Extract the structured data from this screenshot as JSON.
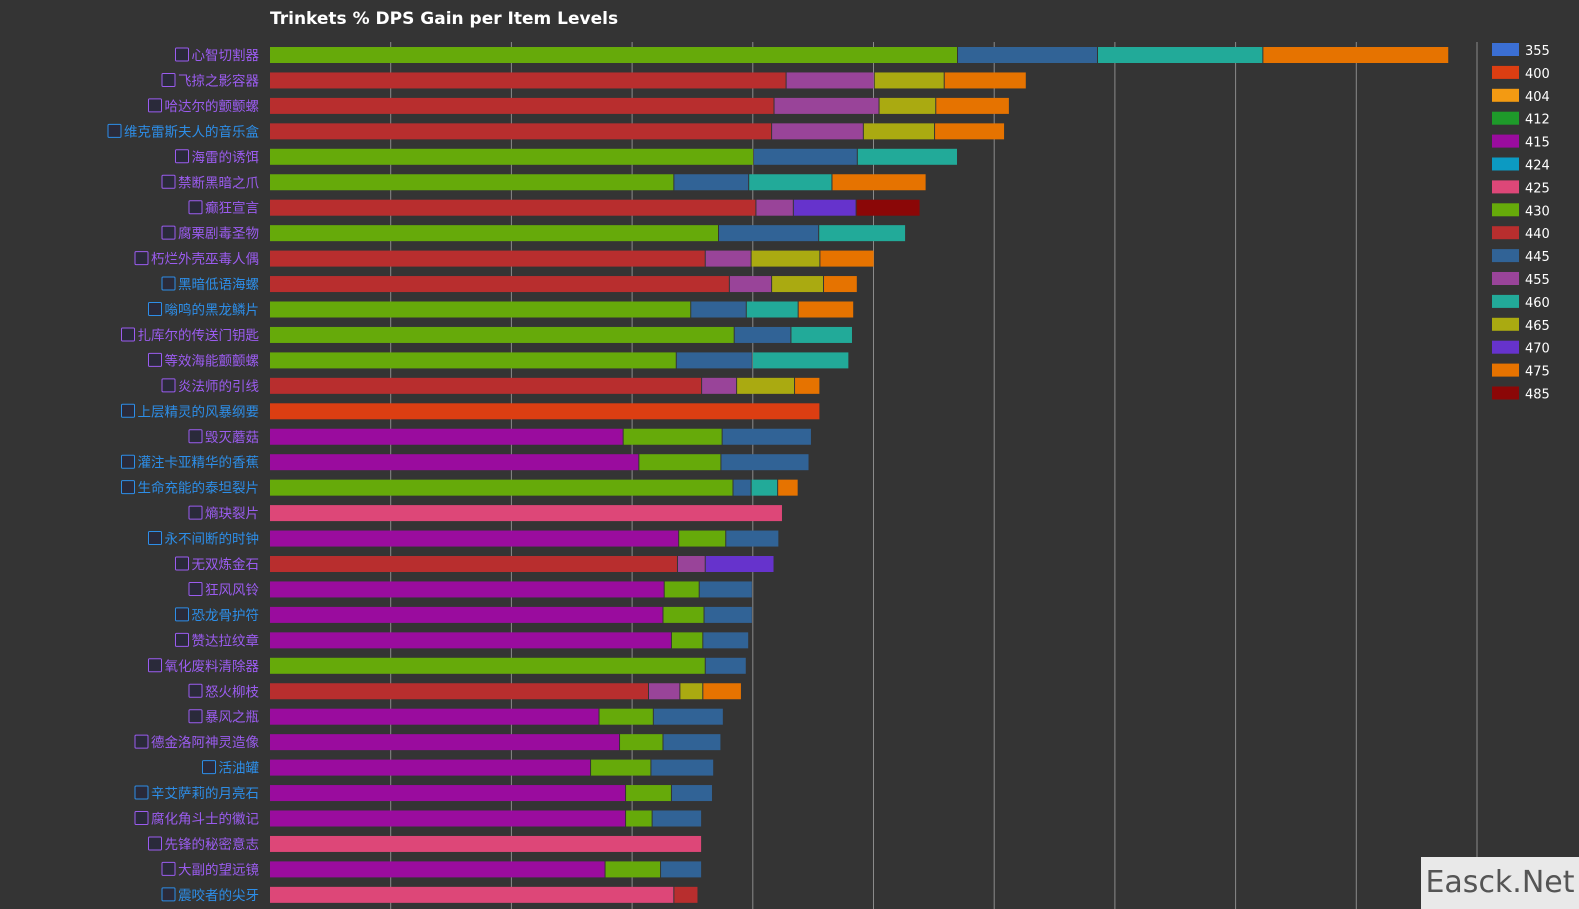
{
  "colors": {
    "background": "#343434",
    "grid": "#8a8a8a",
    "label_purple": "#9b5cf0",
    "label_blue": "#2d8ee8"
  },
  "watermark": "Easck.Net",
  "chart_data": {
    "type": "bar",
    "orientation": "horizontal",
    "stacked": true,
    "title": "Trinkets % DPS Gain per Item Levels",
    "grid": true,
    "legend_position": "right",
    "xlim": [
      0,
      100
    ],
    "legend": [
      {
        "label": "355",
        "color": "#3b6fd4"
      },
      {
        "label": "400",
        "color": "#dc3e12"
      },
      {
        "label": "404",
        "color": "#f39a12"
      },
      {
        "label": "412",
        "color": "#1e9a2a"
      },
      {
        "label": "415",
        "color": "#9a0c9e"
      },
      {
        "label": "424",
        "color": "#0c9ac2"
      },
      {
        "label": "425",
        "color": "#dd4778"
      },
      {
        "label": "430",
        "color": "#66aa0a"
      },
      {
        "label": "440",
        "color": "#b82e2e"
      },
      {
        "label": "445",
        "color": "#316396"
      },
      {
        "label": "455",
        "color": "#994499"
      },
      {
        "label": "460",
        "color": "#22aa99"
      },
      {
        "label": "465",
        "color": "#aaaa11"
      },
      {
        "label": "470",
        "color": "#6633cc"
      },
      {
        "label": "475",
        "color": "#e67300"
      },
      {
        "label": "485",
        "color": "#8b0707"
      }
    ],
    "categories": [
      "心智切割器",
      "飞掠之影容器",
      "哈达尔的颤颤螺",
      "维克雷斯夫人的音乐盒",
      "海雷的诱饵",
      "禁断黑暗之爪",
      "癫狂宣言",
      "腐栗剧毒圣物",
      "朽烂外壳巫毒人偶",
      "黑暗低语海螺",
      "嗡鸣的黑龙鳞片",
      "扎库尔的传送门钥匙",
      "等效海能颤颤螺",
      "炎法师的引线",
      "上层精灵的风暴纲要",
      "毁灭蘑菇",
      "灌注卡亚精华的香蕉",
      "生命充能的泰坦裂片",
      "熵玦裂片",
      "永不间断的时钟",
      "无双炼金石",
      "狂风风铃",
      "恐龙骨护符",
      "赞达拉纹章",
      "氧化废料清除器",
      "怒火柳枝",
      "暴风之瓶",
      "德金洛阿神灵造像",
      "活油罐",
      "辛艾萨莉的月亮石",
      "腐化角斗士的徽记",
      "先锋的秘密意志",
      "大副的望远镜",
      "震咬者的尖牙"
    ],
    "label_colors": [
      "purple",
      "purple",
      "purple",
      "blue",
      "purple",
      "purple",
      "purple",
      "purple",
      "purple",
      "blue",
      "blue",
      "purple",
      "purple",
      "purple",
      "blue",
      "purple",
      "blue",
      "blue",
      "purple",
      "blue",
      "purple",
      "purple",
      "blue",
      "purple",
      "purple",
      "purple",
      "purple",
      "purple",
      "blue",
      "blue",
      "purple",
      "purple",
      "purple",
      "blue"
    ],
    "bars": [
      [
        [
          "430",
          57
        ],
        [
          "445",
          11.6
        ],
        [
          "460",
          13.7
        ],
        [
          "475",
          15.4
        ]
      ],
      [
        [
          "440",
          42.8
        ],
        [
          "455",
          7.3
        ],
        [
          "465",
          5.8
        ],
        [
          "475",
          6.8
        ]
      ],
      [
        [
          "440",
          41.8
        ],
        [
          "455",
          8.7
        ],
        [
          "465",
          4.7
        ],
        [
          "475",
          6.1
        ]
      ],
      [
        [
          "440",
          41.6
        ],
        [
          "455",
          7.6
        ],
        [
          "465",
          5.9
        ],
        [
          "475",
          5.8
        ]
      ],
      [
        [
          "430",
          40.1
        ],
        [
          "445",
          8.6
        ],
        [
          "460",
          8.3
        ]
      ],
      [
        [
          "430",
          33.5
        ],
        [
          "445",
          6.2
        ],
        [
          "460",
          6.9
        ],
        [
          "475",
          7.8
        ]
      ],
      [
        [
          "440",
          40.3
        ],
        [
          "455",
          3.1
        ],
        [
          "470",
          5.2
        ],
        [
          "485",
          5.3
        ]
      ],
      [
        [
          "430",
          37.2
        ],
        [
          "445",
          8.3
        ],
        [
          "460",
          7.2
        ]
      ],
      [
        [
          "440",
          36.1
        ],
        [
          "455",
          3.8
        ],
        [
          "465",
          5.7
        ],
        [
          "475",
          4.5
        ]
      ],
      [
        [
          "440",
          38.1
        ],
        [
          "455",
          3.5
        ],
        [
          "465",
          4.3
        ],
        [
          "475",
          2.8
        ]
      ],
      [
        [
          "430",
          34.9
        ],
        [
          "445",
          4.6
        ],
        [
          "460",
          4.3
        ],
        [
          "475",
          4.6
        ]
      ],
      [
        [
          "430",
          38.5
        ],
        [
          "445",
          4.7
        ],
        [
          "460",
          5.1
        ]
      ],
      [
        [
          "430",
          33.7
        ],
        [
          "445",
          6.3
        ],
        [
          "460",
          8
        ]
      ],
      [
        [
          "440",
          35.8
        ],
        [
          "455",
          2.9
        ],
        [
          "465",
          4.8
        ],
        [
          "475",
          2.1
        ]
      ],
      [
        [
          "400",
          45.6
        ]
      ],
      [
        [
          "415",
          29.3
        ],
        [
          "430",
          8.2
        ],
        [
          "445",
          7.4
        ]
      ],
      [
        [
          "415",
          30.6
        ],
        [
          "430",
          6.8
        ],
        [
          "445",
          7.3
        ]
      ],
      [
        [
          "430",
          38.4
        ],
        [
          "445",
          1.5
        ],
        [
          "460",
          2.2
        ],
        [
          "475",
          1.7
        ]
      ],
      [
        [
          "425",
          42.5
        ]
      ],
      [
        [
          "415",
          33.9
        ],
        [
          "430",
          3.9
        ],
        [
          "445",
          4.4
        ]
      ],
      [
        [
          "440",
          33.8
        ],
        [
          "455",
          2.3
        ],
        [
          "470",
          5.7
        ]
      ],
      [
        [
          "415",
          32.7
        ],
        [
          "430",
          2.9
        ],
        [
          "445",
          4.4
        ]
      ],
      [
        [
          "415",
          32.6
        ],
        [
          "430",
          3.4
        ],
        [
          "445",
          4
        ]
      ],
      [
        [
          "415",
          33.3
        ],
        [
          "430",
          2.6
        ],
        [
          "445",
          3.8
        ]
      ],
      [
        [
          "430",
          36.1
        ],
        [
          "445",
          3.4
        ]
      ],
      [
        [
          "440",
          31.4
        ],
        [
          "455",
          2.6
        ],
        [
          "465",
          1.9
        ],
        [
          "475",
          3.2
        ]
      ],
      [
        [
          "415",
          27.3
        ],
        [
          "430",
          4.5
        ],
        [
          "445",
          5.8
        ]
      ],
      [
        [
          "415",
          29
        ],
        [
          "430",
          3.6
        ],
        [
          "445",
          4.8
        ]
      ],
      [
        [
          "415",
          26.6
        ],
        [
          "430",
          5
        ],
        [
          "445",
          5.2
        ]
      ],
      [
        [
          "415",
          29.5
        ],
        [
          "430",
          3.8
        ],
        [
          "445",
          3.4
        ]
      ],
      [
        [
          "415",
          29.5
        ],
        [
          "430",
          2.2
        ],
        [
          "445",
          4.1
        ]
      ],
      [
        [
          "425",
          35.8
        ]
      ],
      [
        [
          "415",
          27.8
        ],
        [
          "430",
          4.6
        ],
        [
          "445",
          3.4
        ]
      ],
      [
        [
          "425",
          33.5
        ],
        [
          "440",
          2
        ]
      ]
    ]
  }
}
